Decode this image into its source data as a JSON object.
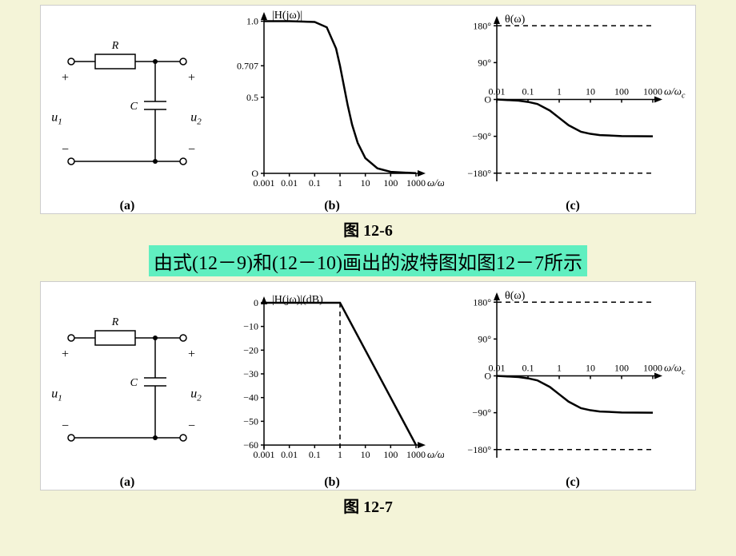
{
  "figure1": {
    "caption": "图 12-6",
    "panel_a": {
      "label": "(a)",
      "R_label": "R",
      "C_label": "C",
      "u1_label": "u",
      "u1_sub": "1",
      "u2_label": "u",
      "u2_sub": "2",
      "plus": "+",
      "minus": "−",
      "wire_color": "#000000",
      "node_radius": 3,
      "term_radius": 3.5
    },
    "panel_b": {
      "label": "(b)",
      "title": "|H(jω)|",
      "ylabels": [
        "1.0",
        "0.707",
        "0.5",
        "O"
      ],
      "yvals": [
        1.0,
        0.707,
        0.5,
        0.0
      ],
      "xlabel": "ω/ω",
      "xlabel_sub": "c",
      "xticks": [
        "0.001",
        "0.01",
        "0.1",
        "1",
        "10",
        "100",
        "1000"
      ],
      "xvals": [
        0.001,
        0.01,
        0.1,
        1,
        10,
        100,
        1000
      ],
      "curve_points": [
        [
          0.001,
          1.0
        ],
        [
          0.01,
          1.0
        ],
        [
          0.1,
          0.995
        ],
        [
          0.3,
          0.96
        ],
        [
          0.7,
          0.82
        ],
        [
          1,
          0.707
        ],
        [
          2,
          0.45
        ],
        [
          3,
          0.32
        ],
        [
          5,
          0.2
        ],
        [
          10,
          0.1
        ],
        [
          30,
          0.033
        ],
        [
          100,
          0.01
        ],
        [
          1000,
          0.001
        ]
      ],
      "ylim": [
        0,
        1.05
      ],
      "curve_width": 2.5,
      "tick_fontsize": 12
    },
    "panel_c": {
      "label": "(c)",
      "title": "θ(ω)",
      "ylabels": [
        "180°",
        "90°",
        "O",
        "−90°",
        "−180°"
      ],
      "yvals": [
        180,
        90,
        0,
        -90,
        -180
      ],
      "xlabel": "ω/ω",
      "xlabel_sub": "c",
      "xticks": [
        "0.01",
        "0.1",
        "1",
        "10",
        "100",
        "1000"
      ],
      "xvals": [
        0.01,
        0.1,
        1,
        10,
        100,
        1000
      ],
      "curve_points": [
        [
          0.01,
          0
        ],
        [
          0.05,
          -3
        ],
        [
          0.1,
          -6
        ],
        [
          0.2,
          -11
        ],
        [
          0.5,
          -27
        ],
        [
          1,
          -45
        ],
        [
          2,
          -63
        ],
        [
          5,
          -79
        ],
        [
          10,
          -84
        ],
        [
          20,
          -87
        ],
        [
          100,
          -89.4
        ],
        [
          1000,
          -89.9
        ]
      ],
      "dashed_at": [
        180,
        -180
      ],
      "ylim": [
        -200,
        200
      ],
      "curve_width": 2.5
    }
  },
  "mid_caption": "由式(12－9)和(12－10)画出的波特图如图12－7所示",
  "figure2": {
    "caption": "图 12-7",
    "panel_a": {
      "label": "(a)",
      "R_label": "R",
      "C_label": "C",
      "u1_label": "u",
      "u1_sub": "1",
      "u2_label": "u",
      "u2_sub": "2",
      "plus": "+",
      "minus": "−"
    },
    "panel_b": {
      "label": "(b)",
      "title": "|H(jω)|(dB)",
      "ylabels": [
        "0",
        "−10",
        "−20",
        "−30",
        "−40",
        "−50",
        "−60"
      ],
      "yvals": [
        0,
        -10,
        -20,
        -30,
        -40,
        -50,
        -60
      ],
      "xlabel": "ω/ω",
      "xlabel_sub": "c",
      "xticks": [
        "0.001",
        "0.01",
        "0.1",
        "1",
        "10",
        "100",
        "1000"
      ],
      "xvals": [
        0.001,
        0.01,
        0.1,
        1,
        10,
        100,
        1000
      ],
      "curve_points": [
        [
          0.001,
          0
        ],
        [
          0.01,
          0
        ],
        [
          0.1,
          0
        ],
        [
          1,
          0
        ],
        [
          10,
          -20
        ],
        [
          100,
          -40
        ],
        [
          1000,
          -60
        ]
      ],
      "dashed_vert_at": 1,
      "ylim": [
        -62,
        2
      ],
      "curve_width": 3
    },
    "panel_c": {
      "label": "(c)",
      "title": "θ(ω)",
      "ylabels": [
        "180°",
        "90°",
        "O",
        "−90°",
        "−180°"
      ],
      "yvals": [
        180,
        90,
        0,
        -90,
        -180
      ],
      "xlabel": "ω/ω",
      "xlabel_sub": "c",
      "xticks": [
        "0.01",
        "0.1",
        "1",
        "10",
        "100",
        "1000"
      ],
      "xvals": [
        0.01,
        0.1,
        1,
        10,
        100,
        1000
      ],
      "curve_points": [
        [
          0.01,
          0
        ],
        [
          0.05,
          -3
        ],
        [
          0.1,
          -6
        ],
        [
          0.2,
          -11
        ],
        [
          0.5,
          -27
        ],
        [
          1,
          -45
        ],
        [
          2,
          -63
        ],
        [
          5,
          -79
        ],
        [
          10,
          -84
        ],
        [
          20,
          -87
        ],
        [
          100,
          -89.4
        ],
        [
          1000,
          -89.9
        ]
      ],
      "dashed_at": [
        180,
        -180
      ],
      "ylim": [
        -200,
        200
      ],
      "curve_width": 2.5
    }
  },
  "colors": {
    "page_bg": "#f4f4d8",
    "figure_bg": "#ffffff",
    "highlight_bg": "#60efc0",
    "stroke": "#000000"
  }
}
